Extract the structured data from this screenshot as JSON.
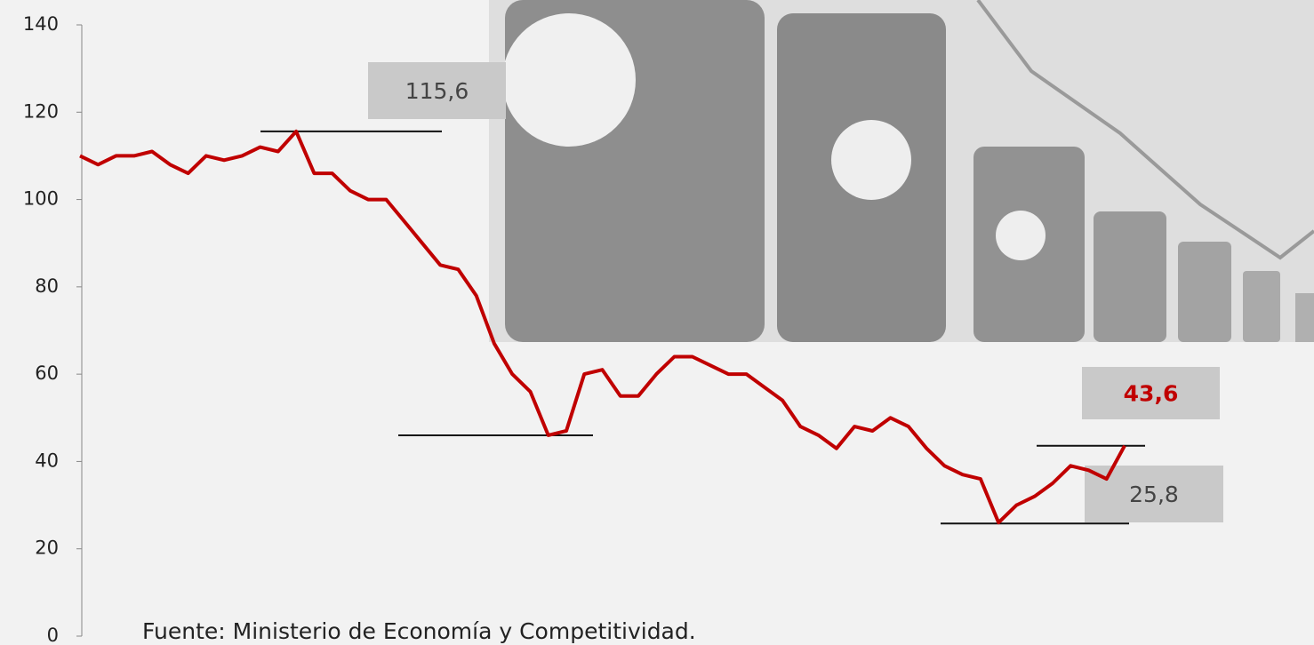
{
  "chart_data": {
    "type": "line",
    "categories": [
      null,
      null,
      null,
      null,
      null,
      null,
      null,
      null,
      null,
      null,
      null,
      null,
      null,
      null,
      null,
      null,
      null,
      null,
      null,
      null,
      null,
      null,
      null,
      null,
      null,
      null,
      null,
      null,
      null,
      null,
      null,
      null,
      null,
      null,
      null,
      null,
      null,
      null,
      null,
      null,
      null,
      null,
      null,
      null,
      null,
      null,
      null,
      null,
      null,
      null,
      null,
      null,
      null,
      null,
      null,
      null,
      null,
      null,
      null
    ],
    "series": [
      {
        "color": "#c00000",
        "values": [
          110,
          108,
          110,
          110,
          111,
          108,
          106,
          110,
          109,
          110,
          112,
          111,
          115.6,
          106,
          106,
          102,
          100,
          100,
          95,
          90,
          85,
          84,
          78,
          67,
          60,
          56,
          46,
          47,
          60,
          61,
          55,
          55,
          60,
          64,
          64,
          62,
          60,
          60,
          57,
          54,
          48,
          46,
          43,
          48,
          47,
          50,
          48,
          43,
          39,
          37,
          36,
          26,
          30,
          32,
          35,
          39,
          38,
          36,
          43.6
        ]
      }
    ],
    "ylim": [
      0,
      140
    ],
    "yticks": [
      0,
      20,
      40,
      60,
      80,
      100,
      120,
      140
    ],
    "annotations": [
      {
        "text": "115,6",
        "value": 115.6
      },
      {
        "text": "43,6",
        "value": 43.6
      },
      {
        "text": "25,8",
        "value": 25.8
      }
    ],
    "source": "Fuente: Ministerio de Economía y Competitividad."
  }
}
